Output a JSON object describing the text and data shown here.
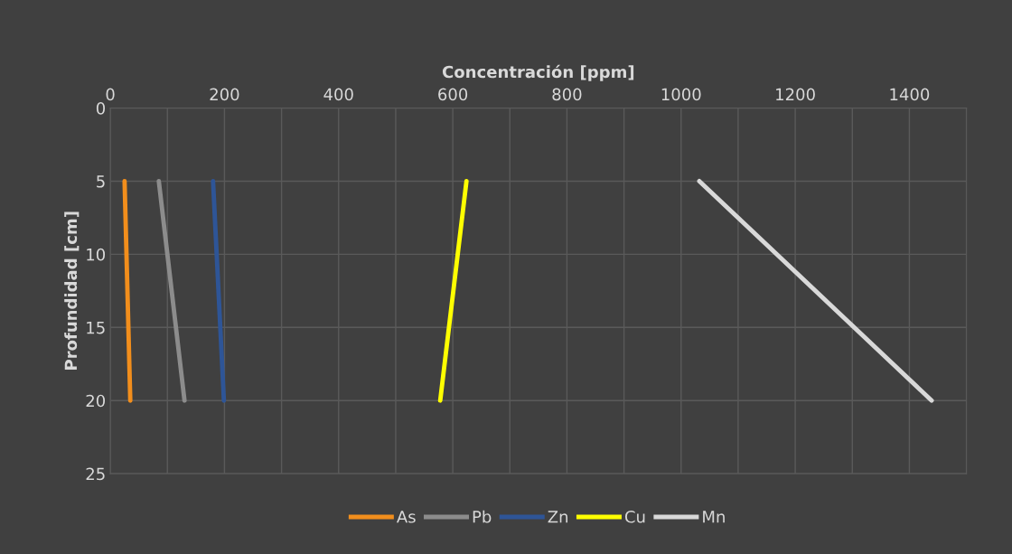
{
  "chart_data": {
    "type": "line",
    "xlabel": "Concentración [ppm]",
    "ylabel": "Profundidad [cm]",
    "xlim": [
      0,
      1500
    ],
    "xticks": [
      0,
      {
        "value": 100,
        "label": null
      },
      200,
      {
        "value": 300,
        "label": null
      },
      400,
      {
        "value": 500,
        "label": null
      },
      600,
      {
        "value": 700,
        "label": null
      },
      800,
      {
        "value": 900,
        "label": null
      },
      1000,
      {
        "value": 1100,
        "label": null
      },
      1200,
      {
        "value": 1300,
        "label": null
      },
      1400,
      {
        "value": 1500,
        "label": null
      }
    ],
    "ylim": [
      25,
      0
    ],
    "yticks": [
      0,
      5,
      10,
      15,
      20,
      25
    ],
    "grid": true,
    "legend": "bottom",
    "series": [
      {
        "name": "As",
        "color": "#f28e1c",
        "x": [
          25,
          35
        ],
        "values": [
          5,
          20
        ]
      },
      {
        "name": "Pb",
        "color": "#8c8c8c",
        "x": [
          85,
          130
        ],
        "values": [
          5,
          20
        ]
      },
      {
        "name": "Zn",
        "color": "#2e5597",
        "x": [
          180,
          199
        ],
        "values": [
          5,
          20
        ]
      },
      {
        "name": "Cu",
        "color": "#ffff00",
        "x": [
          624,
          578
        ],
        "values": [
          5,
          20
        ]
      },
      {
        "name": "Mn",
        "color": "#d9d9d9",
        "x": [
          1032,
          1439
        ],
        "values": [
          5,
          20
        ]
      }
    ]
  }
}
